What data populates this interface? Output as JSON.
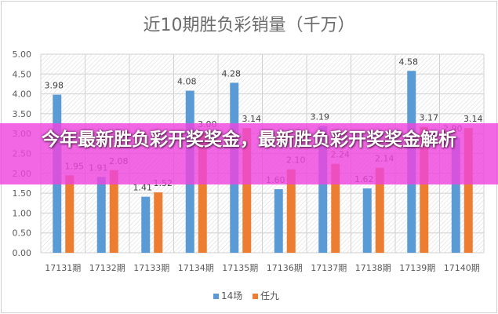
{
  "chart_data": {
    "type": "bar",
    "title": "近10期胜负彩销量（千万）",
    "categories": [
      "17131期",
      "17132期",
      "17133期",
      "17134期",
      "17135期",
      "17136期",
      "17137期",
      "17138期",
      "17139期",
      "17140期"
    ],
    "series": [
      {
        "name": "14场",
        "color": "#5b9bd5",
        "values": [
          3.98,
          1.91,
          1.41,
          4.08,
          4.28,
          1.6,
          3.19,
          1.62,
          4.58,
          2.9
        ]
      },
      {
        "name": "任九",
        "color": "#ed7d31",
        "values": [
          1.95,
          2.08,
          1.52,
          3.0,
          3.14,
          2.1,
          2.24,
          2.14,
          3.17,
          3.14
        ]
      }
    ],
    "ylim": [
      0,
      5
    ],
    "yticks": [
      "0.00",
      "0.50",
      "1.00",
      "1.50",
      "2.00",
      "2.50",
      "3.00",
      "3.50",
      "4.00",
      "4.50",
      "5.00"
    ],
    "grid": true,
    "legend": "bottom",
    "data_labels": true
  },
  "overlay": {
    "banner_text": "今年最新胜负彩开奖奖金，最新胜负彩开奖奖金解析",
    "banner_color": "#ee46de"
  }
}
